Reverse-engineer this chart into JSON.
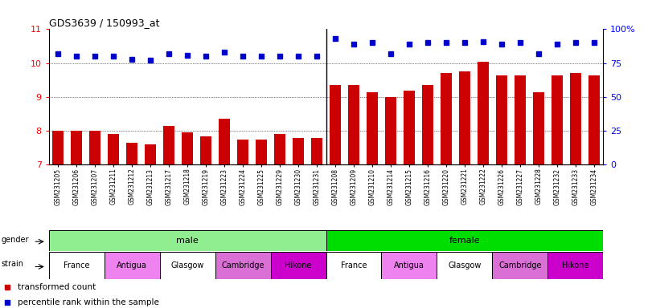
{
  "title": "GDS3639 / 150993_at",
  "samples": [
    "GSM231205",
    "GSM231206",
    "GSM231207",
    "GSM231211",
    "GSM231212",
    "GSM231213",
    "GSM231217",
    "GSM231218",
    "GSM231219",
    "GSM231223",
    "GSM231224",
    "GSM231225",
    "GSM231229",
    "GSM231230",
    "GSM231231",
    "GSM231208",
    "GSM231209",
    "GSM231210",
    "GSM231214",
    "GSM231215",
    "GSM231216",
    "GSM231220",
    "GSM231221",
    "GSM231222",
    "GSM231226",
    "GSM231227",
    "GSM231228",
    "GSM231232",
    "GSM231233",
    "GSM231234"
  ],
  "bar_values": [
    8.01,
    8.0,
    8.0,
    7.9,
    7.65,
    7.6,
    8.15,
    7.95,
    7.85,
    8.35,
    7.75,
    7.75,
    7.9,
    7.8,
    7.8,
    9.35,
    9.35,
    9.15,
    9.0,
    9.2,
    9.35,
    9.7,
    9.75,
    10.05,
    9.65,
    9.65,
    9.15,
    9.65,
    9.7,
    9.65
  ],
  "percentile_values_pct": [
    82,
    80,
    80,
    80,
    78,
    77,
    82,
    81,
    80,
    83,
    80,
    80,
    80,
    80,
    80,
    93,
    89,
    90,
    82,
    89,
    90,
    90,
    90,
    91,
    89,
    90,
    82,
    89,
    90,
    90
  ],
  "bar_color": "#cc0000",
  "dot_color": "#0000cc",
  "ylim_left": [
    7,
    11
  ],
  "ylim_right": [
    0,
    100
  ],
  "yticks_left": [
    7,
    8,
    9,
    10,
    11
  ],
  "yticks_right": [
    0,
    25,
    50,
    75,
    100
  ],
  "ytick_right_labels": [
    "0",
    "25",
    "50",
    "75",
    "100%"
  ],
  "grid_values": [
    8,
    9,
    10
  ],
  "gender_male_color": "#90ee90",
  "gender_female_color": "#00dd00",
  "strain_sequence": [
    "France",
    "Antigua",
    "Glasgow",
    "Cambridge",
    "Hikone",
    "France",
    "Antigua",
    "Glasgow",
    "Cambridge",
    "Hikone"
  ],
  "strain_colors_list": [
    "#ffffff",
    "#ee82ee",
    "#ffffff",
    "#da70d6",
    "#cc00cc",
    "#ffffff",
    "#ee82ee",
    "#ffffff",
    "#da70d6",
    "#cc00cc"
  ],
  "background_color": "#ffffff",
  "fig_width": 8.11,
  "fig_height": 3.84
}
